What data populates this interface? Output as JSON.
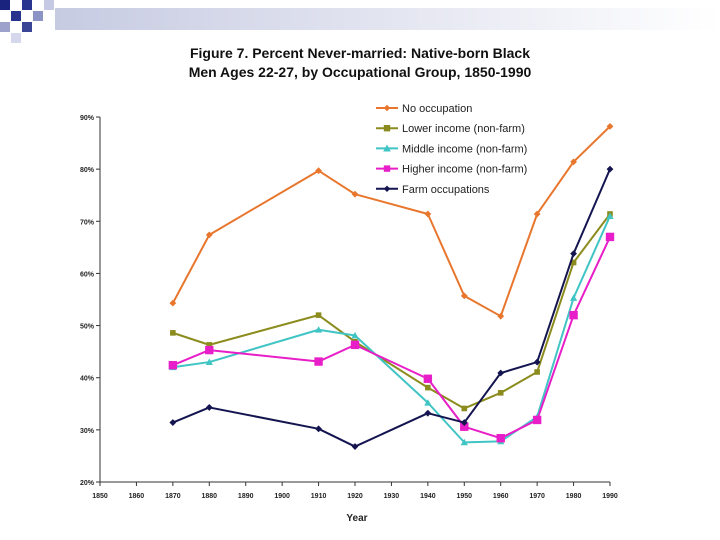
{
  "slide": {
    "title_line1": "Figure 7.  Percent Never-married:  Native-born Black",
    "title_line2": "Men Ages 22-27, by Occupational Group, 1850-1990"
  },
  "chart_data": {
    "type": "line",
    "title": "Figure 7.  Percent Never-married:  Native-born Black Men Ages 22-27, by Occupational Group, 1850-1990",
    "xlabel": "Year",
    "ylabel": "",
    "xlim": [
      1850,
      1990
    ],
    "ylim": [
      20,
      90
    ],
    "xticks": [
      "1850",
      "1860",
      "1870",
      "1880",
      "1890",
      "1900",
      "1910",
      "1920",
      "1930",
      "1940",
      "1950",
      "1960",
      "1970",
      "1980",
      "1990"
    ],
    "yticks": [
      "90%",
      "80%",
      "70%",
      "60%",
      "50%",
      "40%",
      "30%",
      "20%"
    ],
    "yticks_values": [
      90,
      80,
      70,
      60,
      50,
      40,
      30,
      20
    ],
    "xticks_values": [
      1850,
      1860,
      1870,
      1880,
      1890,
      1900,
      1910,
      1920,
      1930,
      1940,
      1950,
      1960,
      1970,
      1980,
      1990
    ],
    "legend_placement": "top-right",
    "grid": false,
    "series": [
      {
        "name": "No occupation",
        "color": "#E8762D",
        "marker": "diamond",
        "x": [
          1870,
          1880,
          1910,
          1920,
          1940,
          1950,
          1960,
          1970,
          1980,
          1990
        ],
        "values": [
          54.3,
          67.4,
          79.7,
          75.2,
          71.4,
          55.7,
          51.8,
          71.4,
          81.4,
          88.2
        ]
      },
      {
        "name": "Lower income (non-farm)",
        "color": "#8C8C1E",
        "marker": "square",
        "x": [
          1870,
          1880,
          1910,
          1920,
          1940,
          1950,
          1960,
          1970,
          1980,
          1990
        ],
        "values": [
          48.6,
          46.3,
          52.0,
          46.9,
          38.1,
          34.1,
          37.1,
          41.1,
          62.1,
          71.4
        ]
      },
      {
        "name": "Middle income (non-farm)",
        "color": "#40C4C4",
        "marker": "triangle",
        "x": [
          1870,
          1880,
          1910,
          1920,
          1940,
          1950,
          1960,
          1970,
          1980,
          1990
        ],
        "values": [
          42.0,
          43.0,
          49.2,
          48.1,
          35.2,
          27.6,
          27.8,
          32.5,
          55.3,
          71.0
        ]
      },
      {
        "name": "Higher income (non-farm)",
        "color": "#E81EC8",
        "marker": "square",
        "x": [
          1870,
          1880,
          1910,
          1920,
          1940,
          1950,
          1960,
          1970,
          1980,
          1990
        ],
        "values": [
          42.4,
          45.3,
          43.1,
          46.3,
          39.8,
          30.6,
          28.4,
          31.9,
          52.0,
          67.0
        ]
      },
      {
        "name": "Farm occupations",
        "color": "#141450",
        "marker": "diamond",
        "x": [
          1870,
          1880,
          1910,
          1920,
          1940,
          1950,
          1960,
          1970,
          1980,
          1990
        ],
        "values": [
          31.4,
          34.3,
          30.2,
          26.8,
          33.2,
          31.4,
          40.9,
          43.0,
          63.8,
          80.0
        ]
      }
    ]
  }
}
